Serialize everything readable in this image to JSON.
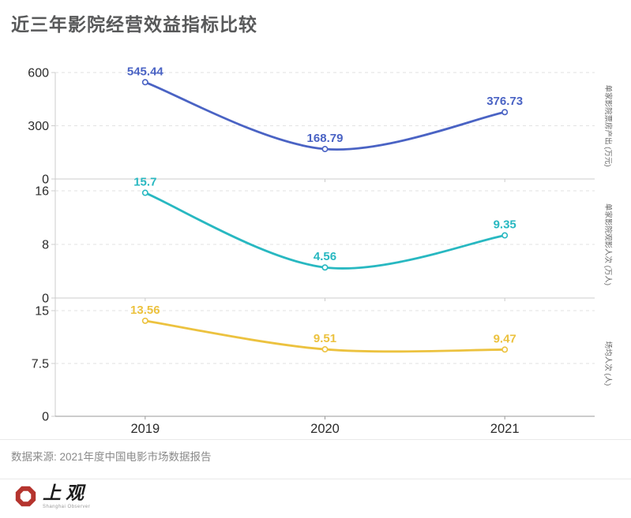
{
  "page": {
    "title": "近三年影院经营效益指标比较",
    "source": "数据来源: 2021年度中国电影市场数据报告",
    "logo": {
      "cn": "上观",
      "en": "Shanghai Observer"
    }
  },
  "chart_data": {
    "type": "line",
    "smooth": true,
    "legend": "none",
    "grid": "dashed horizontal splitlines, stacked 3-panel layout",
    "categories": [
      "2019",
      "2020",
      "2021"
    ],
    "panels": [
      {
        "name": "单家影院票房产出 (万元)",
        "color": "#4a63c4",
        "values": [
          545.44,
          168.79,
          376.73
        ],
        "labels": [
          "545.44",
          "168.79",
          "376.73"
        ],
        "ylim": [
          0,
          600
        ],
        "yticks": [
          0,
          300,
          600
        ],
        "ytick_labels": [
          "0",
          "300",
          "600"
        ]
      },
      {
        "name": "单家影院观影人次 (万人)",
        "color": "#28b8c1",
        "values": [
          15.7,
          4.56,
          9.35
        ],
        "labels": [
          "15.7",
          "4.56",
          "9.35"
        ],
        "ylim": [
          0,
          16
        ],
        "yticks": [
          0,
          8,
          16
        ],
        "ytick_labels": [
          "0",
          "8",
          "16"
        ]
      },
      {
        "name": "场均人次 (人)",
        "color": "#ecc23f",
        "values": [
          13.56,
          9.51,
          9.47
        ],
        "labels": [
          "13.56",
          "9.51",
          "9.47"
        ],
        "ylim": [
          0,
          15
        ],
        "yticks": [
          0,
          7.5,
          15
        ],
        "ytick_labels": [
          "0",
          "7.5",
          "15"
        ]
      }
    ],
    "colors": {
      "axis_line": "#cccccc",
      "bottom_axis_line": "#999999",
      "split_line": "#e2e2e2",
      "tick_text": "#2b2b2b",
      "axis_title_text": "#666666",
      "brand_red": "#b5342e"
    }
  }
}
